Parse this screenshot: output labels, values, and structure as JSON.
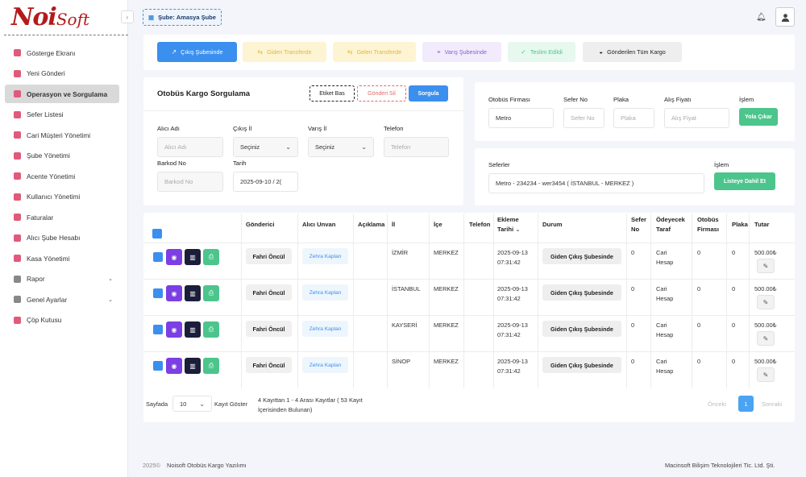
{
  "brand": {
    "logo_main": "Noi",
    "logo_sub": "Soft",
    "accent": "#b31b1b",
    "primary": "#3b8fee"
  },
  "sidebar": {
    "collapse_icon": "chevron-left-icon",
    "items": [
      {
        "label": "Gösterge Ekranı",
        "icon": "home-icon",
        "color": "#e05a7a"
      },
      {
        "label": "Yeni Gönderi",
        "icon": "box-icon",
        "color": "#e05a7a"
      },
      {
        "label": "Operasyon ve Sorgulama",
        "icon": "truck-icon",
        "color": "#e05a7a",
        "active": true
      },
      {
        "label": "Sefer Listesi",
        "icon": "route-icon",
        "color": "#e05a7a"
      },
      {
        "label": "Cari Müşteri Yönetimi",
        "icon": "card-icon",
        "color": "#e05a7a"
      },
      {
        "label": "Şube Yönetimi",
        "icon": "building-icon",
        "color": "#e05a7a"
      },
      {
        "label": "Acente Yönetimi",
        "icon": "bank-icon",
        "color": "#e05a7a"
      },
      {
        "label": "Kullanıcı Yönetimi",
        "icon": "user-icon",
        "color": "#e05a7a"
      },
      {
        "label": "Faturalar",
        "icon": "invoice-icon",
        "color": "#e05a7a"
      },
      {
        "label": "Alıcı Şube Hesabı",
        "icon": "swap-icon",
        "color": "#e05a7a"
      },
      {
        "label": "Kasa Yönetimi",
        "icon": "cash-icon",
        "color": "#e05a7a"
      },
      {
        "label": "Rapor",
        "icon": "grid-icon",
        "color": "#888888",
        "expand": true
      },
      {
        "label": "Genel Ayarlar",
        "icon": "grid-icon",
        "color": "#888888",
        "expand": true
      },
      {
        "label": "Çöp Kutusu",
        "icon": "trash-icon",
        "color": "#e05a7a"
      }
    ]
  },
  "header": {
    "branch_label": "Şube: Amasya Şube",
    "branch_icon": "building-icon",
    "bell_icon": "bell-icon",
    "user_icon": "user-icon"
  },
  "status_tabs": [
    {
      "label": "Çıkış Şubesinde",
      "bg": "#3b8fee",
      "fg": "#ffffff"
    },
    {
      "label": "Giden Transferde",
      "bg": "#fdf4d3",
      "fg": "#e5b73b"
    },
    {
      "label": "Gelen Transferde",
      "bg": "#fdf4d3",
      "fg": "#e5b73b"
    },
    {
      "label": "Varış Şubesinde",
      "bg": "#f1ebfc",
      "fg": "#8a5cd6"
    },
    {
      "label": "Teslim Edildi",
      "bg": "#e7f8ef",
      "fg": "#4cc58c"
    },
    {
      "label": "Gönderilen Tüm Kargo",
      "bg": "#eeeeee",
      "fg": "#222222"
    }
  ],
  "query": {
    "title": "Otobüs Kargo Sorgulama",
    "btn_label": "Etiket Bas",
    "btn_delete": "Gönderi Sil",
    "btn_query": "Sorgula",
    "alici_label": "Alıcı Adı",
    "alici_placeholder": "Alıcı Adı",
    "cikis_label": "Çıkış İl",
    "cikis_value": "Seçiniz",
    "varis_label": "Varış İl",
    "varis_value": "Seçiniz",
    "tel_label": "Telefon",
    "tel_placeholder": "Telefon",
    "barkod_label": "Barkod No",
    "barkod_placeholder": "Barkod No",
    "tarih_label": "Tarih",
    "tarih_value": "2025-09-10 / 2("
  },
  "trip": {
    "firma_label": "Otobüs Firması",
    "firma_value": "Metro",
    "sefer_label": "Sefer No",
    "sefer_placeholder": "Sefer No",
    "plaka_label": "Plaka",
    "plaka_placeholder": "Plaka",
    "fiyat_label": "Alış Fiyatı",
    "fiyat_placeholder": "Alış Fiyat",
    "islem_label": "İşlem",
    "yola_btn": "Yola Çıkar",
    "seferler_label": "Seferler",
    "seferler_value": "Metro - 234234 - wer3454 ( İSTANBUL - MERKEZ )",
    "islem2_label": "İşlem",
    "liste_btn": "Listeye Dahil Et"
  },
  "table": {
    "headers": {
      "gonderici": "Gönderici",
      "alici": "Alıcı Unvan",
      "aciklama": "Açıklama",
      "il": "İl",
      "ilce": "İçe",
      "telefon": "Telefon",
      "ekleme1": "Ekleme",
      "ekleme2": "Tarihi",
      "durum": "Durum",
      "sefer1": "Sefer",
      "sefer2": "No",
      "odeyecek1": "Ödeyecek",
      "odeyecek2": "Taraf",
      "firma1": "Otobüs",
      "firma2": "Firması",
      "plaka": "Plaka",
      "tutar": "Tutar"
    },
    "rows": [
      {
        "gonderici": "Fahri Öncül",
        "alici": "Zehra Kaplan",
        "il": "İZMİR",
        "ilce": "MERKEZ",
        "tarih1": "2025-09-13",
        "tarih2": "07:31:42",
        "durum": "Giden Çıkış Şubesinde",
        "sefer": "0",
        "taraf1": "Cari",
        "taraf2": "Hesap",
        "firma": "0",
        "plaka": "0",
        "tutar": "500.00₺"
      },
      {
        "gonderici": "Fahri Öncül",
        "alici": "Zehra Kaplan",
        "il": "İSTANBUL",
        "ilce": "MERKEZ",
        "tarih1": "2025-09-13",
        "tarih2": "07:31:42",
        "durum": "Giden Çıkış Şubesinde",
        "sefer": "0",
        "taraf1": "Cari",
        "taraf2": "Hesap",
        "firma": "0",
        "plaka": "0",
        "tutar": "500.00₺"
      },
      {
        "gonderici": "Fahri Öncül",
        "alici": "Zehra Kaplan",
        "il": "KAYSERİ",
        "ilce": "MERKEZ",
        "tarih1": "2025-09-13",
        "tarih2": "07:31:42",
        "durum": "Giden Çıkış Şubesinde",
        "sefer": "0",
        "taraf1": "Cari",
        "taraf2": "Hesap",
        "firma": "0",
        "plaka": "0",
        "tutar": "500.00₺"
      },
      {
        "gonderici": "Fahri Öncül",
        "alici": "Zehra Kaplan",
        "il": "SİNOP",
        "ilce": "MERKEZ",
        "tarih1": "2025-09-13",
        "tarih2": "07:31:42",
        "durum": "Giden Çıkış Şubesinde",
        "sefer": "0",
        "taraf1": "Cari",
        "taraf2": "Hesap",
        "firma": "0",
        "plaka": "0",
        "tutar": "500.00₺"
      }
    ]
  },
  "pagination": {
    "sayfada_label": "Sayfada",
    "page_size": "10",
    "kayit_label": "Kayıt Göster",
    "summary": "4 Kayıttan 1 - 4 Arası Kayıtlar ( 53 Kayıt İçerisinden Bulunan)",
    "prev": "Önceki",
    "current": "1",
    "next": "Sonraki"
  },
  "footer": {
    "year": "2025©",
    "product": "Noisoft Otobüs Kargo Yazılımı",
    "company": "Macinsoft Bilişim Teknolojileri Tic. Ltd. Şti."
  }
}
